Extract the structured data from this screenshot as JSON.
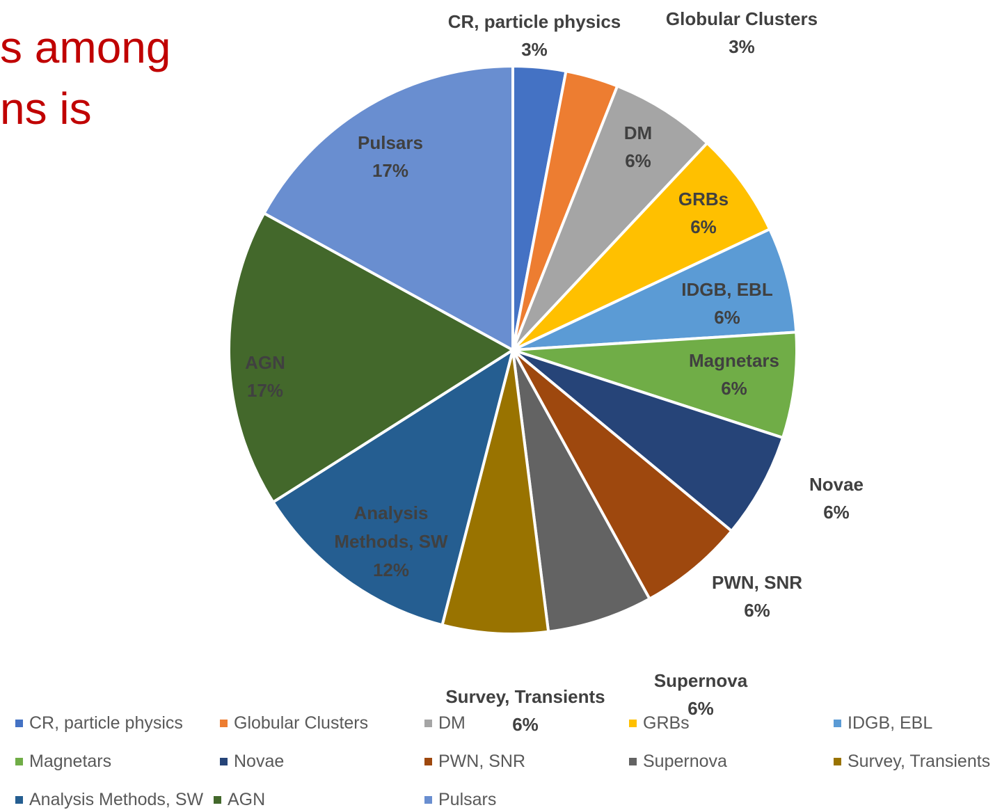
{
  "slide": {
    "title_lines": [
      "s among",
      "ns is"
    ]
  },
  "chart_data": {
    "type": "pie",
    "title": "",
    "slices": [
      {
        "label": "CR, particle physics",
        "value": 3,
        "display": "3%",
        "color": "#4472c4",
        "label_color": "#404040"
      },
      {
        "label": "Globular Clusters",
        "value": 3,
        "display": "3%",
        "color": "#ed7d31",
        "label_color": "#404040"
      },
      {
        "label": "DM",
        "value": 6,
        "display": "6%",
        "color": "#a5a5a5",
        "label_color": "#404040"
      },
      {
        "label": "GRBs",
        "value": 6,
        "display": "6%",
        "color": "#ffc000",
        "label_color": "#404040"
      },
      {
        "label": "IDGB, EBL",
        "value": 6,
        "display": "6%",
        "color": "#5b9bd5",
        "label_color": "#404040"
      },
      {
        "label": "Magnetars",
        "value": 6,
        "display": "6%",
        "color": "#70ad47",
        "label_color": "#404040"
      },
      {
        "label": "Novae",
        "value": 6,
        "display": "6%",
        "color": "#264478",
        "label_color": "#404040"
      },
      {
        "label": "PWN, SNR",
        "value": 6,
        "display": "6%",
        "color": "#9e480e",
        "label_color": "#404040"
      },
      {
        "label": "Supernova",
        "value": 6,
        "display": "6%",
        "color": "#636363",
        "label_color": "#404040"
      },
      {
        "label": "Survey, Transients",
        "value": 6,
        "display": "6%",
        "color": "#997300",
        "label_color": "#404040"
      },
      {
        "label": "Analysis Methods, SW",
        "value": 12,
        "display": "12%",
        "color": "#255e91",
        "label_color": "#404040"
      },
      {
        "label": "AGN",
        "value": 17,
        "display": "17%",
        "color": "#43682b",
        "label_color": "#404040"
      },
      {
        "label": "Pulsars",
        "value": 17,
        "display": "17%",
        "color": "#698ed0",
        "label_color": "#404040"
      }
    ],
    "legend": {
      "position": "bottom",
      "items": [
        "CR, particle physics",
        "Globular Clusters",
        "DM",
        "GRBs",
        "IDGB, EBL",
        "Magnetars",
        "Novae",
        "PWN, SNR",
        "Supernova",
        "Survey, Transients",
        "Analysis Methods, SW",
        "AGN",
        "Pulsars"
      ]
    }
  }
}
